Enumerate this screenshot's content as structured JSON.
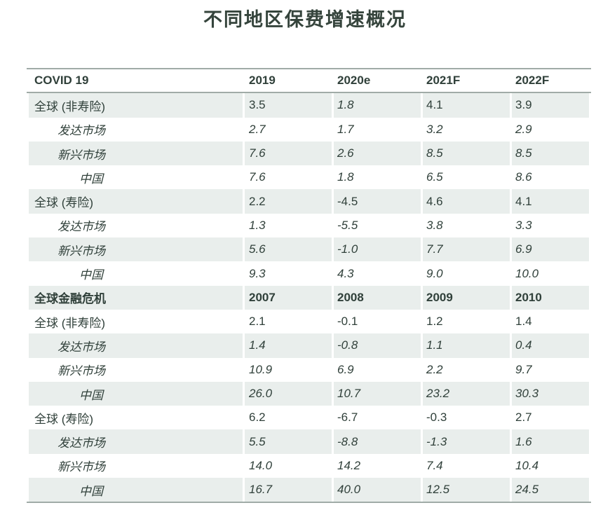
{
  "page": {
    "title": "不同地区保费增速概况"
  },
  "colors": {
    "title_text": "#35443c",
    "table_text": "#30403a",
    "stripe_background": "#e9eeec",
    "border": "#a0aba7"
  },
  "table": {
    "columns": [
      "COVID 19",
      "2019",
      "2020e",
      "2021F",
      "2022F"
    ],
    "rows": [
      {
        "label": "全球 (非寿险)",
        "indent": 0,
        "style": "regular",
        "values": [
          "3.5",
          "1.8",
          "4.1",
          "3.9"
        ],
        "italic_value_indexes": [
          1
        ]
      },
      {
        "label": "发达市场",
        "indent": 1,
        "style": "italic",
        "values": [
          "2.7",
          "1.7",
          "3.2",
          "2.9"
        ]
      },
      {
        "label": "新兴市场",
        "indent": 1,
        "style": "italic",
        "values": [
          "7.6",
          "2.6",
          "8.5",
          "8.5"
        ]
      },
      {
        "label": "中国",
        "indent": 2,
        "style": "italic",
        "values": [
          "7.6",
          "1.8",
          "6.5",
          "8.6"
        ]
      },
      {
        "label": "全球 (寿险)",
        "indent": 0,
        "style": "regular",
        "values": [
          "2.2",
          "-4.5",
          "4.6",
          "4.1"
        ]
      },
      {
        "label": "发达市场",
        "indent": 1,
        "style": "italic",
        "values": [
          "1.3",
          "-5.5",
          "3.8",
          "3.3"
        ]
      },
      {
        "label": "新兴市场",
        "indent": 1,
        "style": "italic",
        "values": [
          "5.6",
          "-1.0",
          "7.7",
          "6.9"
        ]
      },
      {
        "label": "中国",
        "indent": 2,
        "style": "italic",
        "values": [
          "9.3",
          "4.3",
          "9.0",
          "10.0"
        ]
      },
      {
        "label": "全球金融危机",
        "indent": 0,
        "style": "bold",
        "values": [
          "2007",
          "2008",
          "2009",
          "2010"
        ]
      },
      {
        "label": "全球 (非寿险)",
        "indent": 0,
        "style": "regular",
        "values": [
          "2.1",
          "-0.1",
          "1.2",
          "1.4"
        ]
      },
      {
        "label": "发达市场",
        "indent": 1,
        "style": "italic",
        "values": [
          "1.4",
          "-0.8",
          "1.1",
          "0.4"
        ]
      },
      {
        "label": "新兴市场",
        "indent": 1,
        "style": "italic",
        "values": [
          "10.9",
          "6.9",
          "2.2",
          "9.7"
        ]
      },
      {
        "label": "中国",
        "indent": 2,
        "style": "italic",
        "values": [
          "26.0",
          "10.7",
          "23.2",
          "30.3"
        ]
      },
      {
        "label": "全球 (寿险)",
        "indent": 0,
        "style": "regular",
        "values": [
          "6.2",
          "-6.7",
          "-0.3",
          "2.7"
        ]
      },
      {
        "label": "发达市场",
        "indent": 1,
        "style": "italic",
        "values": [
          "5.5",
          "-8.8",
          "-1.3",
          "1.6"
        ]
      },
      {
        "label": "新兴市场",
        "indent": 1,
        "style": "italic",
        "values": [
          "14.0",
          "14.2",
          "7.4",
          "10.4"
        ]
      },
      {
        "label": "中国",
        "indent": 2,
        "style": "italic",
        "values": [
          "16.7",
          "40.0",
          "12.5",
          "24.5"
        ]
      }
    ]
  }
}
